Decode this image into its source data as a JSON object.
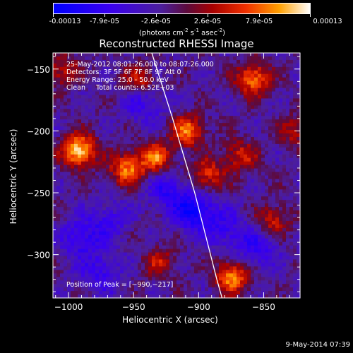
{
  "colorbar": {
    "tick_labels": [
      "-0.00013",
      "-7.9e-05",
      "-2.6e-05",
      "2.6e-05",
      "7.9e-05",
      "0.00013"
    ],
    "units_main": "(photons cm",
    "units_exp1": "-2",
    "units_mid": " s",
    "units_exp2": "-1",
    "units_mid2": " asec",
    "units_exp3": "-2",
    "units_end": ")"
  },
  "chart_data": {
    "type": "heatmap",
    "title": "Reconstructed RHESSI Image",
    "xlabel": "Heliocentric X (arcsec)",
    "ylabel": "Heliocentric Y (arcsec)",
    "xlim": [
      -1012,
      -822
    ],
    "ylim": [
      -335,
      -137
    ],
    "x_ticks": [
      -1000,
      -950,
      -900,
      -850
    ],
    "y_ticks": [
      -150,
      -200,
      -250,
      -300
    ],
    "x_tick_labels": [
      "−1000",
      "−950",
      "−900",
      "−850"
    ],
    "y_tick_labels": [
      "−150",
      "−200",
      "−250",
      "−300"
    ],
    "colorbar_range": [
      -0.00013,
      0.00013
    ],
    "peak": [
      -990,
      -217
    ],
    "hot_sources": [
      {
        "x": -992,
        "y": -216,
        "intensity": 1.0
      },
      {
        "x": -955,
        "y": -231,
        "intensity": 0.75
      },
      {
        "x": -933,
        "y": -222,
        "intensity": 0.7
      },
      {
        "x": -908,
        "y": -200,
        "intensity": 0.7
      },
      {
        "x": -893,
        "y": -236,
        "intensity": 0.55
      },
      {
        "x": -874,
        "y": -318,
        "intensity": 0.8
      },
      {
        "x": -858,
        "y": -158,
        "intensity": 0.75
      },
      {
        "x": -868,
        "y": -220,
        "intensity": 0.5
      },
      {
        "x": -945,
        "y": -160,
        "intensity": 0.5
      },
      {
        "x": -1005,
        "y": -152,
        "intensity": 0.45
      },
      {
        "x": -843,
        "y": -272,
        "intensity": 0.45
      },
      {
        "x": -930,
        "y": -306,
        "intensity": 0.4
      },
      {
        "x": -825,
        "y": -200,
        "intensity": 0.4
      }
    ],
    "cold_sources": [
      {
        "x": -903,
        "y": -265,
        "intensity": 0.95
      },
      {
        "x": -925,
        "y": -247,
        "intensity": 0.6
      },
      {
        "x": -990,
        "y": -287,
        "intensity": 0.6
      },
      {
        "x": -975,
        "y": -315,
        "intensity": 0.5
      },
      {
        "x": -942,
        "y": -177,
        "intensity": 0.55
      },
      {
        "x": -855,
        "y": -296,
        "intensity": 0.55
      },
      {
        "x": -878,
        "y": -280,
        "intensity": 0.5
      },
      {
        "x": -968,
        "y": -272,
        "intensity": 0.45
      }
    ],
    "limb": [
      [
        -936,
        -137
      ],
      [
        -920,
        -190
      ],
      [
        -903,
        -250
      ],
      [
        -886,
        -320
      ],
      [
        -882,
        -335
      ]
    ]
  },
  "info": {
    "line1": "25-May-2012 08:01:26.000 to 08:07:26.000",
    "line2": "Detectors: 3F 5F 6F 7F 8F 9F Att 0",
    "line3": "Energy Range: 25.0 - 50.0 keV",
    "line4": "Clean     Total counts: 6.52E+03"
  },
  "peak_label": "Position of Peak = [−990,−217]",
  "timestamp": "9-May-2014 07:39"
}
